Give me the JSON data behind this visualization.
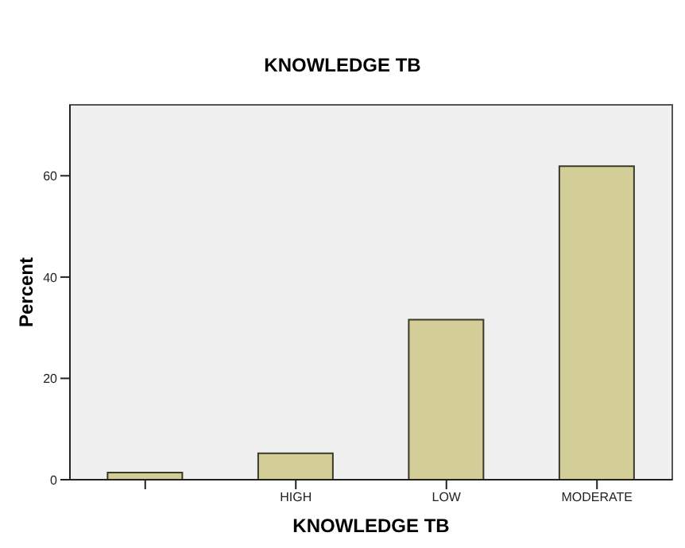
{
  "chart_data": {
    "type": "bar",
    "title": "KNOWLEDGE TB",
    "xlabel": "KNOWLEDGE TB",
    "ylabel": "Percent",
    "categories": [
      null,
      "HIGH",
      "LOW",
      "MODERATE"
    ],
    "values": [
      1.4,
      5.2,
      31.6,
      61.9
    ],
    "color": "#d3ce97",
    "ylim": [
      0,
      74
    ],
    "yticks": [
      0,
      20,
      40,
      60
    ]
  }
}
